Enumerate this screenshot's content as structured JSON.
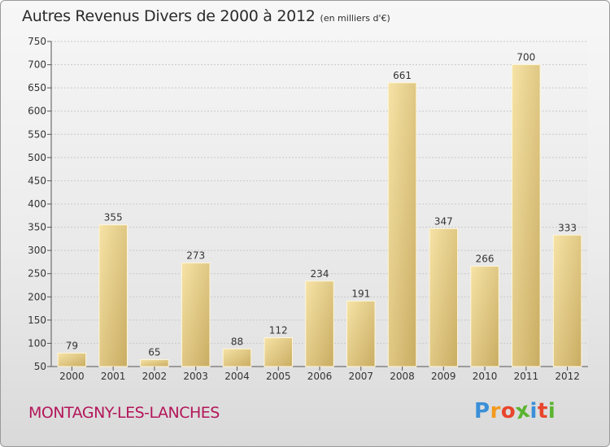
{
  "chart_data": {
    "type": "bar",
    "title": "Autres Revenus Divers de 2000 à 2012",
    "subtitle": "(en milliers d'€)",
    "categories": [
      "2000",
      "2001",
      "2002",
      "2003",
      "2004",
      "2005",
      "2006",
      "2007",
      "2008",
      "2009",
      "2010",
      "2011",
      "2012"
    ],
    "values": [
      79,
      355,
      65,
      273,
      88,
      112,
      234,
      191,
      661,
      347,
      266,
      700,
      333
    ],
    "ylim": [
      50,
      750
    ],
    "yticks": [
      50,
      100,
      150,
      200,
      250,
      300,
      350,
      400,
      450,
      500,
      550,
      600,
      650,
      700,
      750
    ],
    "grid": true,
    "bar_color": "#e2c989"
  },
  "commune": "MONTAGNY-LES-LANCHES",
  "logo": {
    "letters": [
      "P",
      "r",
      "o",
      "x",
      "i",
      "t",
      "i"
    ],
    "colors": [
      "#3a8fd8",
      "#f39a1e",
      "#e8452c",
      "#5bb431",
      "#3a8fd8",
      "#e8452c",
      "#5bb431"
    ]
  },
  "colors": {
    "commune": "#b3165a"
  }
}
